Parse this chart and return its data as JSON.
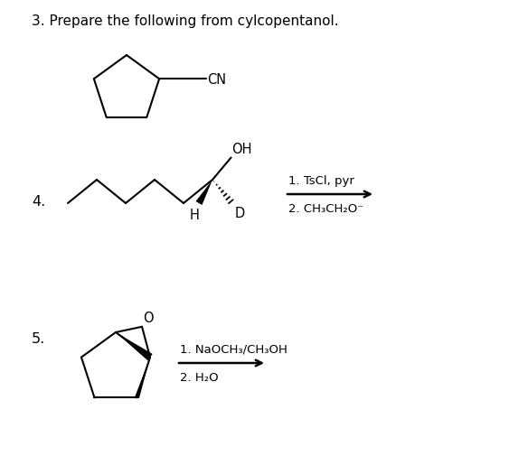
{
  "title": "3. Prepare the following from cylcopentanol.",
  "title_fontsize": 11,
  "background_color": "#ffffff",
  "text_color": "#000000",
  "label_4": "4.",
  "label_5": "5.",
  "reaction1_line1": "1. TsCl, pyr",
  "reaction1_line2": "2. CH₃CH₂O⁻",
  "reaction2_line1": "1. NaOCH₃/CH₃OH",
  "reaction2_line2": "2. H₂O",
  "CN_label": "CN",
  "OH_label": "OH",
  "H_label": "H",
  "D_label": "D",
  "O_label": "O"
}
